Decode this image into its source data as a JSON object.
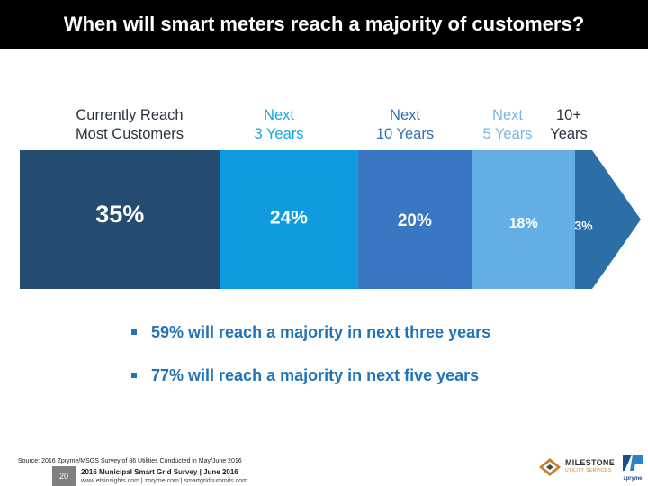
{
  "title": "When will smart meters reach a majority of customers?",
  "chart_data": {
    "type": "bar",
    "orientation": "stacked-horizontal-arrow",
    "categories": [
      [
        "Currently Reach",
        "Most Customers"
      ],
      [
        "Next",
        "3 Years"
      ],
      [
        "Next",
        "10 Years"
      ],
      [
        "Next",
        "5 Years"
      ],
      [
        "10+",
        "Years"
      ]
    ],
    "values": [
      35,
      24,
      20,
      18,
      3
    ],
    "value_labels": [
      "35%",
      "24%",
      "20%",
      "18%",
      "3%"
    ],
    "unit": "%",
    "colors": [
      "#244b70",
      "#0f9be0",
      "#3a77c2",
      "#63aee5",
      "#2b6ea8"
    ],
    "label_colors": [
      "#2a3440",
      "#1ba3e0",
      "#3470bb",
      "#7ab5e6",
      "#2a3440"
    ]
  },
  "bullets": [
    "59% will reach a majority in next three years",
    "77% will reach a majority in next five years"
  ],
  "footer": {
    "source": "Source: 2016 Zpryme/MSGS Survey of 86 Utilities Conducted in May/June 2016",
    "page_number": "20",
    "survey": "2016 Municipal Smart Grid Survey | June 2016",
    "links": "www.etsinsights.com | zpryme.com | smartgridsummits.com"
  },
  "logos": {
    "milestone_name": "MILESTONE",
    "milestone_sub": "UTILITY SERVICES",
    "zpryme_name": "zpryme"
  }
}
